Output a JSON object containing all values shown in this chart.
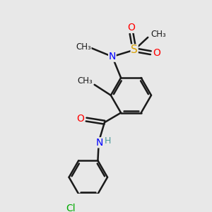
{
  "background_color": "#e8e8e8",
  "bond_color": "#1a1a1a",
  "bond_width": 1.8,
  "atom_colors": {
    "C": "#1a1a1a",
    "N": "#0000FF",
    "O": "#FF0000",
    "S": "#DAA000",
    "Cl": "#00AA00",
    "H": "#4a9a9a"
  },
  "font_size": 9,
  "figsize": [
    3.0,
    3.0
  ],
  "dpi": 100,
  "xlim": [
    0,
    10
  ],
  "ylim": [
    0,
    10
  ]
}
